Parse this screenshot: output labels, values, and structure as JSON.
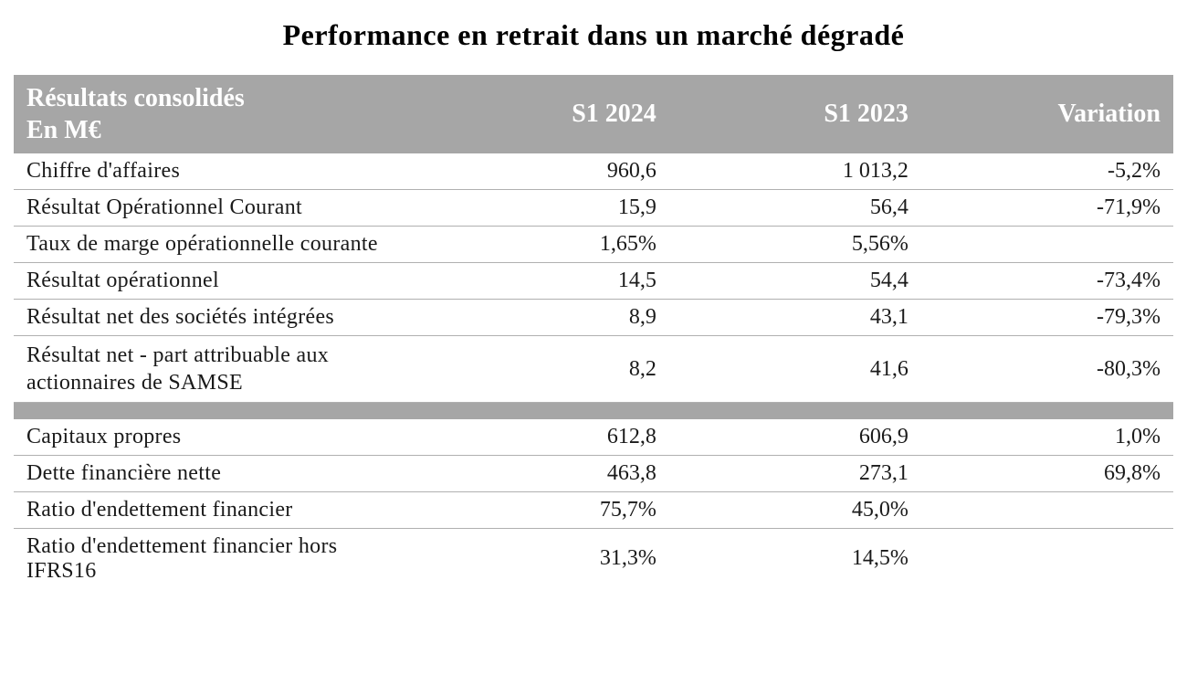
{
  "title": "Performance en retrait dans un marché dégradé",
  "table": {
    "header": {
      "label_line1": "Résultats consolidés",
      "label_line2": "En M€",
      "col1": "S1 2024",
      "col2": "S1 2023",
      "col3": "Variation"
    },
    "rows": [
      {
        "label": "Chiffre d'affaires",
        "v1": "960,6",
        "v2": "1 013,2",
        "v3": "-5,2%"
      },
      {
        "label": "Résultat Opérationnel Courant",
        "v1": "15,9",
        "v2": "56,4",
        "v3": "-71,9%"
      },
      {
        "label": "Taux de marge opérationnelle courante",
        "v1": "1,65%",
        "v2": "5,56%",
        "v3": ""
      },
      {
        "label": "Résultat opérationnel",
        "v1": "14,5",
        "v2": "54,4",
        "v3": "-73,4%"
      },
      {
        "label": "Résultat net des sociétés intégrées",
        "v1": "8,9",
        "v2": "43,1",
        "v3": "-79,3%"
      },
      {
        "label": "Résultat net - part attribuable aux actionnaires de SAMSE",
        "v1": "8,2",
        "v2": "41,6",
        "v3": "-80,3%"
      }
    ],
    "rows2": [
      {
        "label": "Capitaux propres",
        "v1": "612,8",
        "v2": "606,9",
        "v3": "1,0%"
      },
      {
        "label": "Dette financière nette",
        "v1": "463,8",
        "v2": "273,1",
        "v3": "69,8%"
      },
      {
        "label": "Ratio d'endettement financier",
        "v1": "75,7%",
        "v2": "45,0%",
        "v3": ""
      },
      {
        "label": "Ratio d'endettement financier hors IFRS16",
        "v1": "31,3%",
        "v2": "14,5%",
        "v3": ""
      }
    ]
  },
  "style": {
    "header_bg": "#a6a6a6",
    "header_text_color": "#ffffff",
    "border_color": "#b0b0b0",
    "body_text_color": "#1a1a1a",
    "title_fontsize": 32,
    "header_fontsize": 28,
    "body_fontsize": 24,
    "font_family": "Times New Roman"
  }
}
